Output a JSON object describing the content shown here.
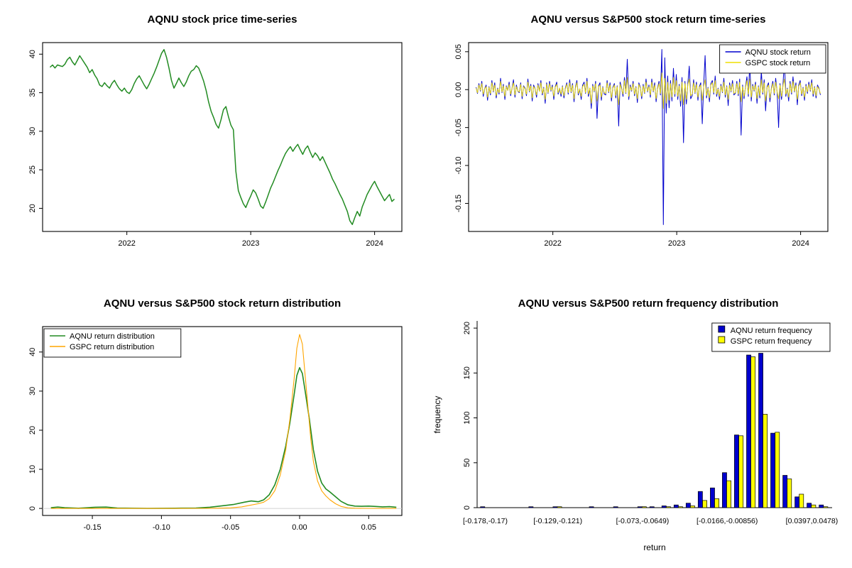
{
  "page": {
    "background": "#ffffff"
  },
  "chart_data": [
    {
      "id": "price",
      "type": "line",
      "title": "AQNU stock price time-series",
      "xlim": [
        2021.32,
        2024.22
      ],
      "ylim": [
        17.0,
        41.5
      ],
      "x_tick_values": [
        2022,
        2023,
        2024
      ],
      "x_tick_labels": [
        "2022",
        "2023",
        "2024"
      ],
      "y_tick_values": [
        20,
        25,
        30,
        35,
        40
      ],
      "y_tick_labels": [
        "20",
        "25",
        "30",
        "35",
        "40"
      ],
      "series": [
        {
          "name": "AQNU price",
          "color": "#228B22",
          "width": 1.5,
          "x_start": 2021.38,
          "x_step": 0.02,
          "values": [
            38.3,
            38.6,
            38.2,
            38.6,
            38.5,
            38.4,
            38.7,
            39.3,
            39.6,
            39.0,
            38.6,
            39.2,
            39.8,
            39.3,
            38.8,
            38.3,
            37.6,
            38.0,
            37.3,
            36.8,
            36.0,
            35.8,
            36.3,
            35.9,
            35.6,
            36.2,
            36.6,
            36.0,
            35.5,
            35.2,
            35.6,
            35.1,
            34.9,
            35.4,
            36.2,
            36.8,
            37.2,
            36.6,
            36.0,
            35.5,
            36.1,
            36.8,
            37.5,
            38.3,
            39.2,
            40.1,
            40.6,
            39.6,
            38.2,
            36.6,
            35.6,
            36.2,
            36.9,
            36.3,
            35.8,
            36.4,
            37.2,
            37.8,
            38.0,
            38.5,
            38.2,
            37.4,
            36.5,
            35.3,
            33.8,
            32.6,
            31.8,
            30.9,
            30.4,
            31.5,
            32.8,
            33.2,
            31.9,
            30.8,
            30.2,
            24.8,
            22.3,
            21.4,
            20.6,
            20.1,
            20.9,
            21.6,
            22.4,
            22.0,
            21.2,
            20.3,
            20.0,
            20.8,
            21.7,
            22.6,
            23.3,
            24.1,
            24.9,
            25.6,
            26.4,
            27.1,
            27.6,
            28.0,
            27.4,
            27.9,
            28.3,
            27.6,
            27.0,
            27.7,
            28.1,
            27.3,
            26.6,
            27.2,
            26.8,
            26.2,
            26.7,
            26.0,
            25.3,
            24.6,
            23.8,
            23.2,
            22.5,
            21.8,
            21.2,
            20.4,
            19.6,
            18.4,
            17.9,
            18.8,
            19.6,
            19.0,
            20.2,
            21.0,
            21.8,
            22.4,
            23.0,
            23.5,
            22.8,
            22.2,
            21.6,
            21.0,
            21.4,
            21.8,
            20.9,
            21.2
          ]
        }
      ]
    },
    {
      "id": "returns",
      "type": "line",
      "title": "AQNU versus S&P500 stock return time-series",
      "xlim": [
        2021.32,
        2024.22
      ],
      "ylim": [
        -0.187,
        0.062
      ],
      "x_tick_values": [
        2022,
        2023,
        2024
      ],
      "x_tick_labels": [
        "2022",
        "2023",
        "2024"
      ],
      "y_tick_values": [
        0.05,
        0,
        -0.05,
        -0.1,
        -0.15
      ],
      "y_tick_labels": [
        "0.05",
        "0.00",
        "-0.05",
        "-0.10",
        "-0.15"
      ],
      "legend": {
        "position": "top-right",
        "kind": "line",
        "entries": [
          {
            "label": "AQNU stock return",
            "color": "#0000CD"
          },
          {
            "label": "GSPC stock return",
            "color": "#EFDF00"
          }
        ]
      },
      "series": [
        {
          "name": "AQNU stock return",
          "color": "#0000CD",
          "width": 1,
          "scale": 0.001,
          "x_start": 2021.38,
          "x_step": 0.01163,
          "values": [
            3,
            -5,
            8,
            -2,
            11,
            -9,
            1,
            6,
            -14,
            4,
            -7,
            12,
            -3,
            9,
            -11,
            2,
            -6,
            15,
            -4,
            7,
            -13,
            5,
            -1,
            10,
            -8,
            2,
            13,
            -10,
            6,
            -2,
            -4,
            9,
            -12,
            5,
            2,
            -8,
            14,
            -3,
            7,
            -15,
            6,
            1,
            -10,
            8,
            -2,
            12,
            -7,
            3,
            -18,
            9,
            -5,
            11,
            -2,
            6,
            -13,
            4,
            10,
            -6,
            2,
            -9,
            5,
            -11,
            2,
            9,
            -6,
            13,
            -4,
            8,
            -16,
            3,
            12,
            -7,
            1,
            -13,
            6,
            10,
            -5,
            15,
            -9,
            2,
            -25,
            7,
            -3,
            11,
            -38,
            5,
            9,
            -14,
            4,
            -6,
            -7,
            12,
            -4,
            9,
            -15,
            3,
            8,
            -11,
            5,
            -48,
            10,
            2,
            -9,
            16,
            -5,
            40,
            -13,
            6,
            -2,
            11,
            -8,
            4,
            -17,
            9,
            3,
            -12,
            7,
            -5,
            14,
            -3,
            6,
            -10,
            14,
            -3,
            9,
            -16,
            2,
            11,
            -7,
            53,
            -178,
            42,
            -31,
            18,
            -24,
            12,
            -15,
            28,
            -9,
            20,
            -13,
            7,
            -22,
            16,
            -70,
            11,
            -19,
            8,
            31,
            -12,
            -8,
            13,
            -5,
            10,
            -14,
            4,
            9,
            -45,
            6,
            45,
            -11,
            3,
            -16,
            8,
            12,
            -6,
            18,
            -9,
            2,
            -13,
            7,
            -4,
            15,
            -10,
            5,
            -21,
            9,
            -3,
            12,
            -7,
            -5,
            11,
            -8,
            14,
            -60,
            6,
            -12,
            3,
            17,
            -9,
            35,
            -15,
            7,
            -2,
            10,
            -18,
            5,
            -11,
            24,
            -6,
            13,
            -28,
            4,
            9,
            -16,
            2,
            11,
            -7,
            15,
            -4,
            -50,
            8,
            -13,
            5,
            38,
            -9,
            2,
            -15,
            11,
            -6,
            17,
            -3,
            9,
            -20,
            6,
            12,
            -8,
            3,
            -14,
            7,
            -5,
            10,
            -2,
            13,
            -9,
            4,
            -11,
            6,
            2,
            -7
          ]
        },
        {
          "name": "GSPC stock return",
          "color": "#EFDF00",
          "width": 0.9,
          "scale": 0.001,
          "x_start": 2021.38,
          "x_step": 0.01163,
          "values": [
            2,
            -4,
            6,
            -1,
            8,
            -6,
            1,
            4,
            -10,
            3,
            -5,
            9,
            -2,
            6,
            -8,
            1,
            -4,
            11,
            -3,
            5,
            -9,
            4,
            -1,
            7,
            -6,
            2,
            9,
            -7,
            4,
            -2,
            -3,
            7,
            -9,
            4,
            1,
            -6,
            10,
            -2,
            5,
            -11,
            4,
            1,
            -7,
            6,
            -2,
            9,
            -5,
            2,
            -13,
            7,
            -4,
            8,
            -1,
            4,
            -9,
            3,
            7,
            -4,
            2,
            -6,
            4,
            -8,
            1,
            7,
            -4,
            9,
            -3,
            6,
            -12,
            2,
            9,
            -5,
            1,
            -9,
            4,
            7,
            -4,
            11,
            -6,
            2,
            -18,
            5,
            -2,
            8,
            -15,
            4,
            6,
            -10,
            3,
            -4,
            -5,
            9,
            -3,
            6,
            -11,
            2,
            6,
            -8,
            4,
            -20,
            7,
            1,
            -6,
            12,
            -4,
            16,
            -9,
            4,
            -1,
            8,
            -6,
            3,
            -12,
            7,
            2,
            -9,
            5,
            -4,
            10,
            -2,
            4,
            -7,
            10,
            -2,
            6,
            -12,
            1,
            8,
            -5,
            22,
            -25,
            15,
            -18,
            10,
            -14,
            8,
            -10,
            16,
            -6,
            12,
            -9,
            5,
            -15,
            10,
            -20,
            8,
            -13,
            6,
            14,
            -8,
            -6,
            9,
            -4,
            7,
            -10,
            3,
            6,
            -14,
            4,
            13,
            -8,
            2,
            -11,
            6,
            9,
            -4,
            12,
            -6,
            1,
            -9,
            5,
            -3,
            10,
            -7,
            4,
            -13,
            6,
            -2,
            8,
            -5,
            -4,
            8,
            -6,
            10,
            -16,
            4,
            -9,
            2,
            12,
            -6,
            14,
            -10,
            5,
            -1,
            7,
            -12,
            4,
            -8,
            13,
            -4,
            9,
            -15,
            3,
            6,
            -11,
            1,
            8,
            -5,
            10,
            -3,
            -12,
            6,
            -9,
            4,
            14,
            -6,
            1,
            -10,
            8,
            -4,
            11,
            -2,
            6,
            -13,
            4,
            9,
            -6,
            2,
            -10,
            5,
            -3,
            7,
            -1,
            9,
            -6,
            3,
            -8,
            4,
            1,
            -5
          ]
        }
      ]
    },
    {
      "id": "distribution",
      "type": "line",
      "title": "AQNU versus S&P500 stock return distribution",
      "xlim": [
        -0.186,
        0.074
      ],
      "ylim": [
        -1.8,
        46.5
      ],
      "x_tick_values": [
        -0.15,
        -0.1,
        -0.05,
        0,
        0.05
      ],
      "x_tick_labels": [
        "-0.15",
        "-0.10",
        "-0.05",
        "0.00",
        "0.05"
      ],
      "y_tick_values": [
        0,
        10,
        20,
        30,
        40
      ],
      "y_tick_labels": [
        "0",
        "10",
        "20",
        "30",
        "40"
      ],
      "zero_line_color": "#d0d0d0",
      "legend": {
        "position": "top-left",
        "kind": "line",
        "entries": [
          {
            "label": "AQNU return distribution",
            "color": "#228B22"
          },
          {
            "label": "GSPC return distribution",
            "color": "#FFA500"
          }
        ]
      },
      "series": [
        {
          "name": "AQNU return distribution",
          "color": "#228B22",
          "width": 1.6,
          "x": [
            -0.18,
            -0.175,
            -0.17,
            -0.16,
            -0.148,
            -0.14,
            -0.132,
            -0.11,
            -0.09,
            -0.075,
            -0.065,
            -0.055,
            -0.048,
            -0.04,
            -0.035,
            -0.03,
            -0.026,
            -0.022,
            -0.018,
            -0.014,
            -0.01,
            -0.007,
            -0.004,
            -0.002,
            0,
            0.002,
            0.004,
            0.007,
            0.01,
            0.013,
            0.016,
            0.019,
            0.022,
            0.026,
            0.03,
            0.035,
            0.04,
            0.045,
            0.05,
            0.055,
            0.06,
            0.065,
            0.07
          ],
          "y": [
            0.2,
            0.35,
            0.2,
            0.05,
            0.3,
            0.35,
            0.1,
            0.02,
            0.05,
            0.1,
            0.3,
            0.7,
            1.0,
            1.6,
            1.9,
            1.7,
            2.2,
            3.5,
            6.0,
            10,
            16,
            22,
            29,
            34,
            36,
            34.5,
            30,
            23,
            15,
            9.5,
            6.5,
            5.0,
            4.2,
            3.0,
            1.8,
            0.9,
            0.6,
            0.55,
            0.6,
            0.5,
            0.4,
            0.45,
            0.3
          ]
        },
        {
          "name": "GSPC return distribution",
          "color": "#FFA500",
          "width": 1.1,
          "x": [
            -0.18,
            -0.07,
            -0.06,
            -0.05,
            -0.042,
            -0.036,
            -0.03,
            -0.026,
            -0.022,
            -0.018,
            -0.014,
            -0.01,
            -0.007,
            -0.004,
            -0.002,
            0,
            0.002,
            0.004,
            0.006,
            0.008,
            0.01,
            0.013,
            0.016,
            0.019,
            0.022,
            0.026,
            0.03,
            0.035,
            0.04,
            0.05,
            0.07
          ],
          "y": [
            0,
            0.01,
            0.05,
            0.15,
            0.4,
            0.8,
            1.2,
            1.6,
            2.5,
            4.5,
            8.5,
            15,
            23,
            33,
            41,
            44.5,
            42,
            34,
            26,
            18,
            12,
            7,
            4.5,
            3.2,
            2.2,
            1.2,
            0.5,
            0.15,
            0.05,
            0.01,
            0
          ]
        }
      ]
    },
    {
      "id": "frequency",
      "type": "bar",
      "title": "AQNU versus S&P500 return frequency distribution",
      "ylabel": "frequency",
      "xlabel": "return",
      "ylim": [
        0,
        208
      ],
      "y_tick_values": [
        0,
        50,
        100,
        150,
        200
      ],
      "y_tick_labels": [
        "0",
        "50",
        "100",
        "150",
        "200"
      ],
      "bin_count": 29,
      "x_tick_bins": [
        0,
        6,
        13,
        20,
        27
      ],
      "x_tick_labels": [
        "[-0.178,-0.17)",
        "[-0.129,-0.121)",
        "[-0.073,-0.0649)",
        "[-0.0166,-0.00856)",
        "[0.0397,0.0478)"
      ],
      "legend": {
        "position": "top-right",
        "kind": "box",
        "entries": [
          {
            "label": "AQNU return frequency",
            "color": "#0000CD"
          },
          {
            "label": "GSPC return frequency",
            "color": "#FFFF00"
          }
        ]
      },
      "series": [
        {
          "name": "AQNU return frequency",
          "color": "#0000CD",
          "values": [
            1,
            0,
            0,
            0,
            1,
            0,
            1,
            0,
            0,
            1,
            0,
            1,
            0,
            1,
            1,
            2,
            3,
            5,
            18,
            22,
            39,
            81,
            170,
            172,
            83,
            36,
            12,
            5,
            3
          ]
        },
        {
          "name": "GSPC return frequency",
          "color": "#FFFF00",
          "values": [
            0,
            0,
            0,
            0,
            0,
            0,
            1,
            0,
            0,
            0,
            0,
            0,
            0,
            1,
            0,
            1,
            1,
            2,
            8,
            10,
            30,
            80,
            168,
            104,
            84,
            32,
            15,
            3,
            1
          ]
        }
      ]
    }
  ]
}
